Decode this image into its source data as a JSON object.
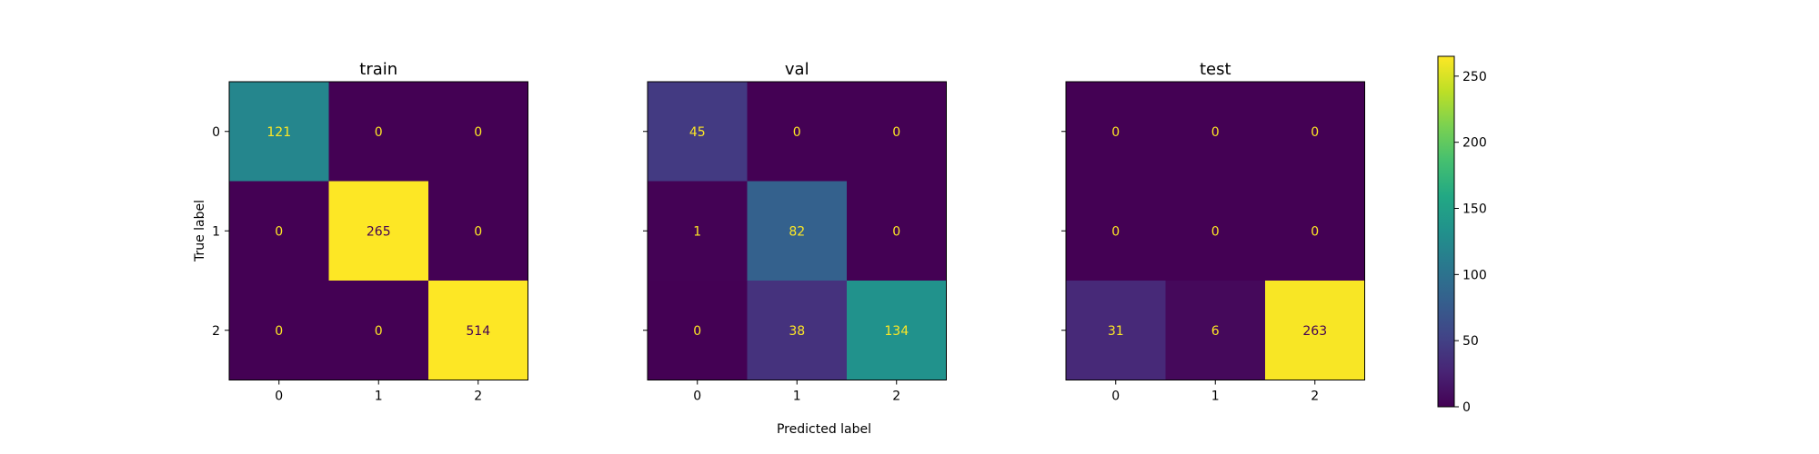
{
  "chart_data": {
    "type": "heatmap",
    "colormap": "viridis",
    "color_range": [
      0,
      265
    ],
    "xlabel": "Predicted label",
    "ylabel": "True label",
    "x_categories": [
      "0",
      "1",
      "2"
    ],
    "y_categories": [
      "0",
      "1",
      "2"
    ],
    "colorbar_ticks": [
      "0",
      "50",
      "100",
      "150",
      "200",
      "250"
    ],
    "panels": [
      {
        "title": "train",
        "matrix": [
          [
            121,
            0,
            0
          ],
          [
            0,
            265,
            0
          ],
          [
            0,
            0,
            514
          ]
        ]
      },
      {
        "title": "val",
        "matrix": [
          [
            45,
            0,
            0
          ],
          [
            1,
            82,
            0
          ],
          [
            0,
            38,
            134
          ]
        ]
      },
      {
        "title": "test",
        "matrix": [
          [
            0,
            0,
            0
          ],
          [
            0,
            0,
            0
          ],
          [
            31,
            6,
            263
          ]
        ]
      }
    ]
  }
}
